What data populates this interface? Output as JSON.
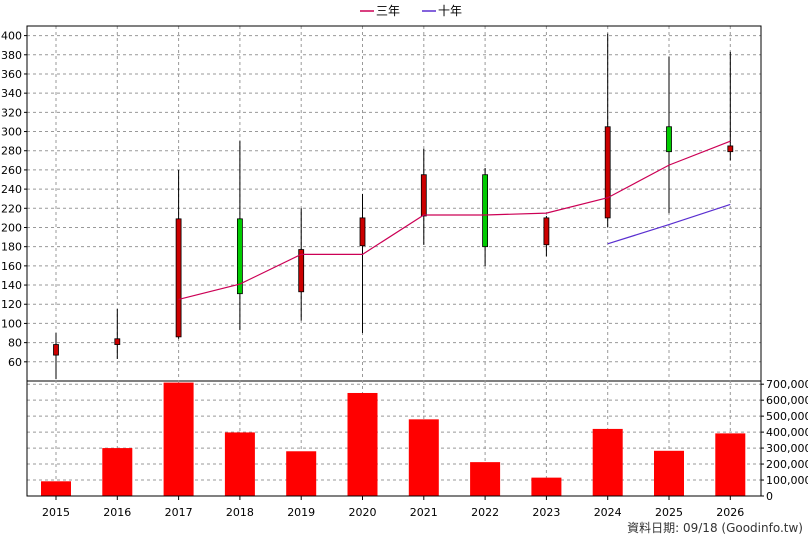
{
  "chart_data": {
    "type": "candlestick_with_volume",
    "years": [
      "2015",
      "2016",
      "2017",
      "2018",
      "2019",
      "2020",
      "2021",
      "2022",
      "2023",
      "2024",
      "2025",
      "2026"
    ],
    "candles": [
      {
        "open": 67,
        "close": 78,
        "high": 90,
        "low": 42
      },
      {
        "open": 78,
        "close": 84,
        "high": 115,
        "low": 63
      },
      {
        "open": 86,
        "close": 209,
        "high": 260,
        "low": 84
      },
      {
        "open": 209,
        "close": 131,
        "high": 290,
        "low": 93
      },
      {
        "open": 133,
        "close": 177,
        "high": 220,
        "low": 103
      },
      {
        "open": 181,
        "close": 210,
        "high": 235,
        "low": 90
      },
      {
        "open": 212,
        "close": 255,
        "high": 282,
        "low": 182
      },
      {
        "open": 255,
        "close": 180,
        "high": 262,
        "low": 160
      },
      {
        "open": 182,
        "close": 210,
        "high": 212,
        "low": 170
      },
      {
        "open": 210,
        "close": 305,
        "high": 402,
        "low": 200
      },
      {
        "open": 305,
        "close": 279,
        "high": 378,
        "low": 215
      },
      {
        "open": 279,
        "close": 285,
        "high": 383,
        "low": 270
      }
    ],
    "series": [
      {
        "name": "三年",
        "color": "#cc0055",
        "values": [
          null,
          null,
          125,
          141,
          172,
          172,
          213,
          213,
          215,
          231,
          265,
          290
        ]
      },
      {
        "name": "十年",
        "color": "#5a2fd0",
        "values": [
          null,
          null,
          null,
          null,
          null,
          null,
          null,
          null,
          null,
          183,
          203,
          224
        ]
      }
    ],
    "volume": [
      92000,
      300000,
      710000,
      398000,
      280000,
      645000,
      480000,
      212000,
      115000,
      420000,
      283000,
      392000
    ],
    "price_ticks": [
      60,
      80,
      100,
      120,
      140,
      160,
      180,
      200,
      220,
      240,
      260,
      280,
      300,
      320,
      340,
      360,
      380,
      400
    ],
    "volume_ticks": [
      "0",
      "100,000",
      "200,000",
      "300,000",
      "400,000",
      "500,000",
      "600,000",
      "700,000"
    ],
    "volume_tick_values": [
      0,
      100000,
      200000,
      300000,
      400000,
      500000,
      600000,
      700000
    ],
    "price_ylim": [
      40,
      410
    ],
    "volume_ylim": [
      0,
      720000
    ],
    "legend_position": "top-center",
    "grid": true,
    "up_color": "#cc0000",
    "down_color": "#00cc00",
    "volume_color": "#ff0000"
  },
  "footer": {
    "text": "資料日期: 09/18 (Goodinfo.tw)"
  }
}
